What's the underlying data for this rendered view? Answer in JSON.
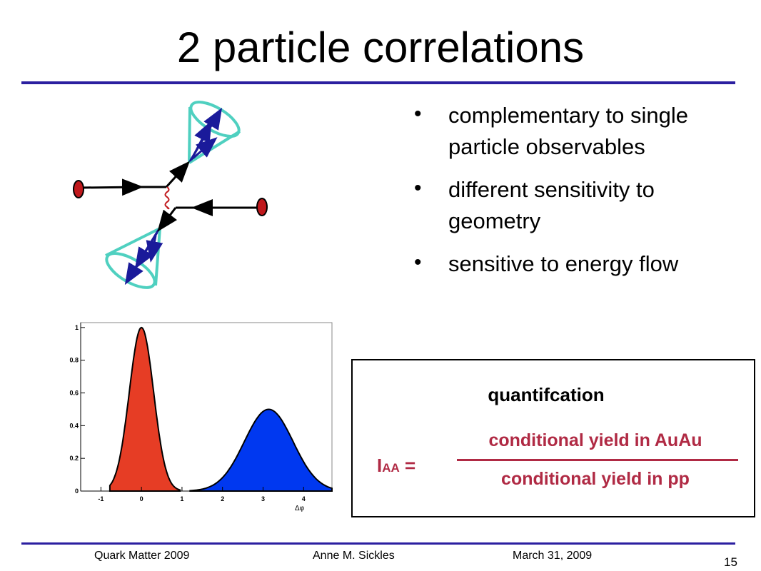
{
  "slide": {
    "title": "2 particle correlations",
    "bullets": [
      "complementary to single particle observables",
      "different sensitivity to geometry",
      "sensitive to energy flow"
    ],
    "bullet_symbol": "•"
  },
  "quant_box": {
    "heading": "quantifcation",
    "lhs_main": "I",
    "lhs_sub": "AA",
    "equals": "=",
    "numerator": "conditional yield in AuAu",
    "denominator": "conditional yield in pp",
    "color": "#b02a44"
  },
  "chart_data": {
    "type": "area",
    "xlabel": "Δφ",
    "ylabel": "",
    "xlim": [
      -1.5,
      4.7
    ],
    "ylim": [
      0,
      1.03
    ],
    "x_ticks": [
      "-1",
      "0",
      "1",
      "2",
      "3",
      "4"
    ],
    "y_ticks": [
      "0",
      "0.2",
      "0.4",
      "0.6",
      "0.8",
      "1"
    ],
    "series": [
      {
        "peak_x": 0.0,
        "peak_y": 1.0,
        "sigma": 0.3,
        "range": [
          -0.78,
          0.95
        ],
        "color": "#e63d25"
      },
      {
        "peak_x": 3.14,
        "peak_y": 0.5,
        "sigma": 0.6,
        "range": [
          1.2,
          5.0
        ],
        "color": "#0038f0"
      }
    ]
  },
  "footer": {
    "conference": "Quark Matter 2009",
    "author": "Anne M. Sickles",
    "date": "March 31, 2009",
    "page_number": "15"
  }
}
